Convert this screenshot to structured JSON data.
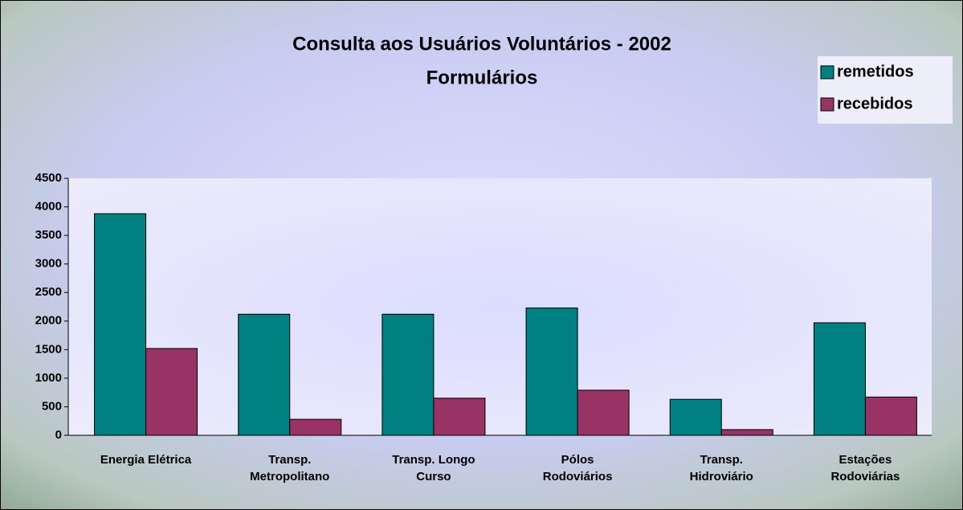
{
  "chart_data": {
    "type": "bar",
    "title": "Consulta aos Usuários Voluntários - 2002",
    "subtitle": "Formulários",
    "categories": [
      "Energia Elétrica",
      "Transp.\nMetropolitano",
      "Transp. Longo\nCurso",
      "Pólos\nRodoviários",
      "Transp.\nHidroviário",
      "Estações\nRodoviárias"
    ],
    "series": [
      {
        "name": "remetidos",
        "color": "#008080",
        "values": [
          3880,
          2120,
          2120,
          2230,
          630,
          1970
        ]
      },
      {
        "name": "recebidos",
        "color": "#993366",
        "values": [
          1520,
          280,
          650,
          790,
          100,
          670
        ]
      }
    ],
    "ylim": [
      0,
      4500
    ],
    "yticks": [
      0,
      500,
      1000,
      1500,
      2000,
      2500,
      3000,
      3500,
      4000,
      4500
    ],
    "grid": false,
    "legend": "top-right"
  }
}
